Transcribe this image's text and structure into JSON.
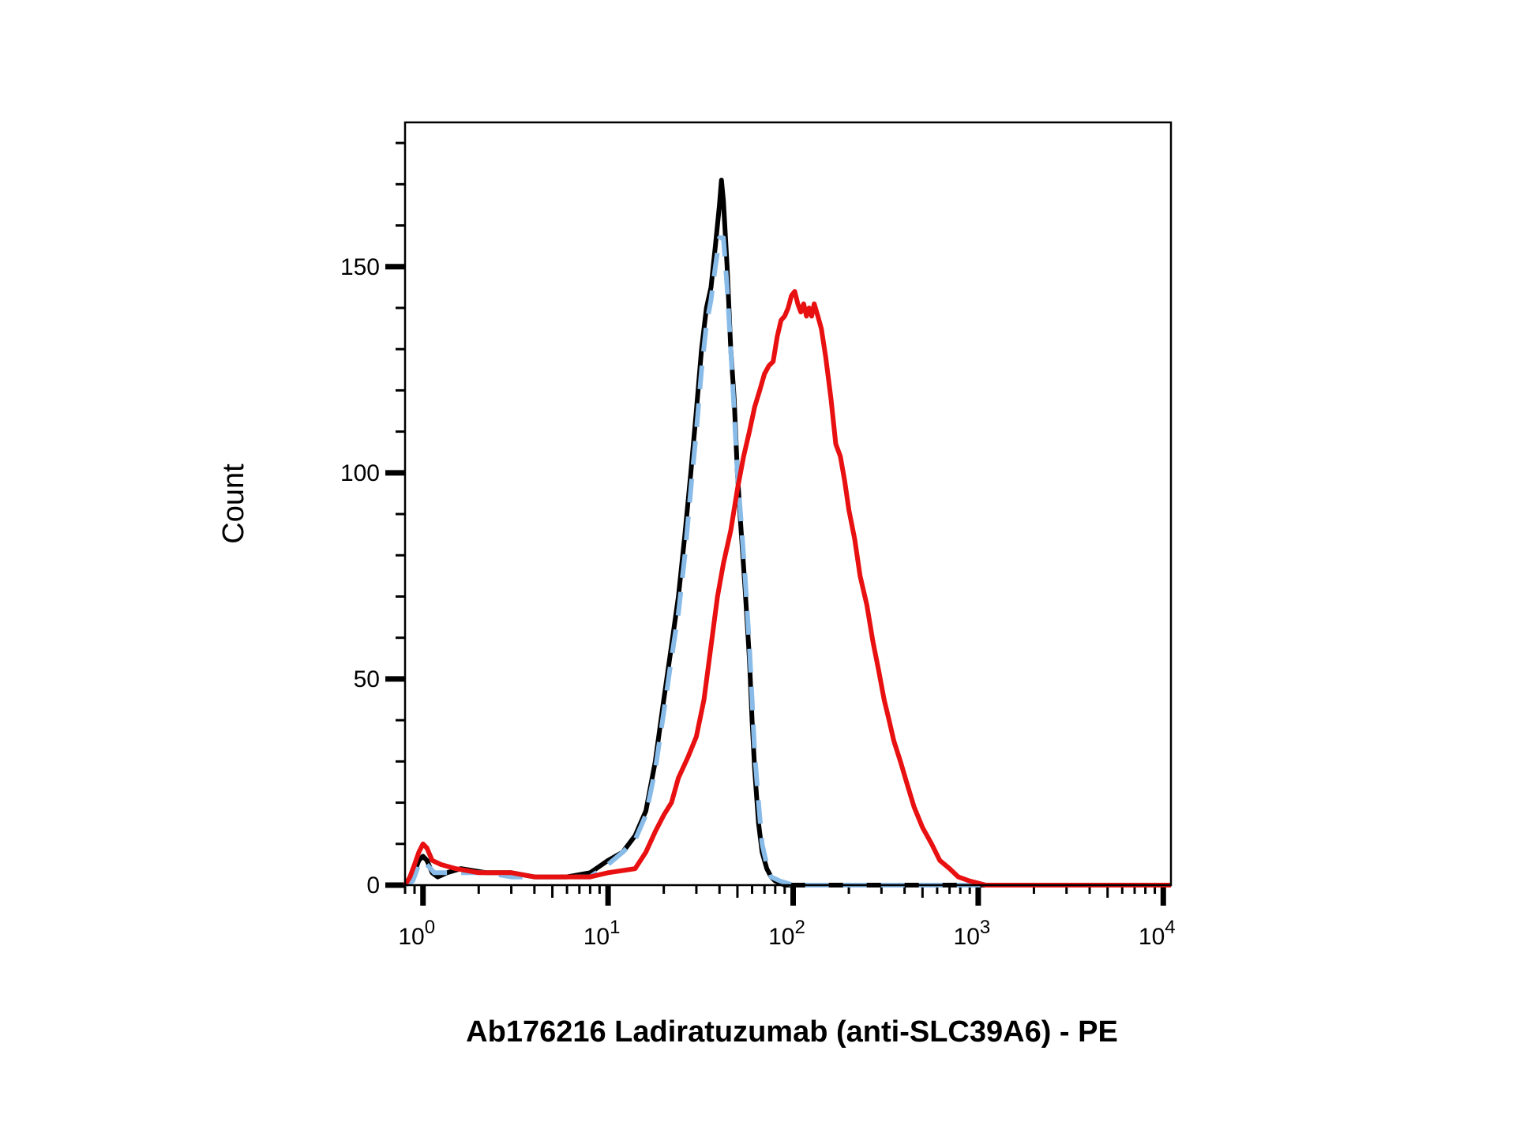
{
  "chart_data": {
    "type": "line",
    "title": "",
    "xlabel": "Ab176216 Ladiratuzumab (anti-SLC39A6) - PE",
    "ylabel": "Count",
    "xscale": "log",
    "xlim": [
      0.8,
      11000
    ],
    "ylim": [
      0,
      185
    ],
    "grid": false,
    "legend": "none",
    "x_ticks": [
      {
        "value": 1,
        "base": "10",
        "exp": "0"
      },
      {
        "value": 10,
        "base": "10",
        "exp": "1"
      },
      {
        "value": 100,
        "base": "10",
        "exp": "2"
      },
      {
        "value": 1000,
        "base": "10",
        "exp": "3"
      },
      {
        "value": 10000,
        "base": "10",
        "exp": "4"
      }
    ],
    "y_ticks": [
      {
        "value": 0,
        "label": "0"
      },
      {
        "value": 50,
        "label": "50"
      },
      {
        "value": 100,
        "label": "100"
      },
      {
        "value": 150,
        "label": "150"
      }
    ],
    "series": [
      {
        "color": "#000000",
        "style": "solid",
        "points": [
          [
            0.8,
            0
          ],
          [
            0.88,
            2
          ],
          [
            0.95,
            6
          ],
          [
            1.0,
            7
          ],
          [
            1.05,
            6
          ],
          [
            1.12,
            3
          ],
          [
            1.2,
            2
          ],
          [
            1.35,
            3
          ],
          [
            1.6,
            4
          ],
          [
            2.2,
            3
          ],
          [
            3,
            3
          ],
          [
            4,
            2
          ],
          [
            6,
            2
          ],
          [
            8,
            3
          ],
          [
            10,
            6
          ],
          [
            12,
            8
          ],
          [
            14,
            12
          ],
          [
            16,
            18
          ],
          [
            18,
            30
          ],
          [
            20,
            45
          ],
          [
            22,
            58
          ],
          [
            24,
            70
          ],
          [
            26,
            85
          ],
          [
            28,
            100
          ],
          [
            30,
            115
          ],
          [
            32,
            130
          ],
          [
            34,
            140
          ],
          [
            36,
            145
          ],
          [
            38,
            155
          ],
          [
            40,
            165
          ],
          [
            41,
            171
          ],
          [
            42,
            166
          ],
          [
            44,
            150
          ],
          [
            46,
            130
          ],
          [
            48,
            118
          ],
          [
            50,
            100
          ],
          [
            52,
            88
          ],
          [
            55,
            72
          ],
          [
            58,
            55
          ],
          [
            60,
            40
          ],
          [
            62,
            28
          ],
          [
            65,
            15
          ],
          [
            68,
            8
          ],
          [
            72,
            4
          ],
          [
            76,
            2
          ],
          [
            80,
            1
          ],
          [
            90,
            0
          ],
          [
            200,
            0
          ],
          [
            11000,
            0
          ]
        ]
      },
      {
        "color": "#88bbe8",
        "style": "dashed",
        "points": [
          [
            0.8,
            0
          ],
          [
            0.88,
            1
          ],
          [
            0.95,
            5
          ],
          [
            1.0,
            6
          ],
          [
            1.05,
            5
          ],
          [
            1.15,
            3
          ],
          [
            1.3,
            3
          ],
          [
            1.6,
            3
          ],
          [
            2.2,
            3
          ],
          [
            3,
            2
          ],
          [
            4,
            2
          ],
          [
            6,
            2
          ],
          [
            8,
            2
          ],
          [
            10,
            5
          ],
          [
            12,
            8
          ],
          [
            14,
            11
          ],
          [
            16,
            17
          ],
          [
            18,
            28
          ],
          [
            20,
            42
          ],
          [
            22,
            55
          ],
          [
            24,
            66
          ],
          [
            26,
            80
          ],
          [
            28,
            96
          ],
          [
            30,
            110
          ],
          [
            32,
            125
          ],
          [
            34,
            136
          ],
          [
            36,
            142
          ],
          [
            38,
            150
          ],
          [
            40,
            157
          ],
          [
            42,
            157
          ],
          [
            44,
            145
          ],
          [
            46,
            130
          ],
          [
            48,
            115
          ],
          [
            50,
            100
          ],
          [
            52,
            90
          ],
          [
            55,
            75
          ],
          [
            58,
            58
          ],
          [
            60,
            45
          ],
          [
            62,
            32
          ],
          [
            65,
            20
          ],
          [
            68,
            10
          ],
          [
            72,
            5
          ],
          [
            76,
            2
          ],
          [
            85,
            1
          ],
          [
            100,
            0
          ],
          [
            11000,
            0
          ]
        ]
      },
      {
        "color": "#e81010",
        "style": "solid",
        "points": [
          [
            0.8,
            0
          ],
          [
            0.85,
            2
          ],
          [
            0.9,
            5
          ],
          [
            0.95,
            8
          ],
          [
            1.0,
            10
          ],
          [
            1.05,
            9
          ],
          [
            1.12,
            6
          ],
          [
            1.25,
            5
          ],
          [
            1.5,
            4
          ],
          [
            2,
            3
          ],
          [
            3,
            3
          ],
          [
            4,
            2
          ],
          [
            6,
            2
          ],
          [
            8,
            2
          ],
          [
            10,
            3
          ],
          [
            14,
            4
          ],
          [
            16,
            8
          ],
          [
            18,
            13
          ],
          [
            20,
            17
          ],
          [
            22,
            20
          ],
          [
            24,
            26
          ],
          [
            27,
            31
          ],
          [
            30,
            36
          ],
          [
            33,
            45
          ],
          [
            36,
            58
          ],
          [
            39,
            70
          ],
          [
            42,
            78
          ],
          [
            46,
            86
          ],
          [
            50,
            96
          ],
          [
            54,
            104
          ],
          [
            58,
            110
          ],
          [
            62,
            116
          ],
          [
            66,
            120
          ],
          [
            70,
            124
          ],
          [
            74,
            126
          ],
          [
            78,
            127
          ],
          [
            82,
            133
          ],
          [
            86,
            137
          ],
          [
            90,
            138
          ],
          [
            94,
            140
          ],
          [
            98,
            143
          ],
          [
            102,
            144
          ],
          [
            106,
            141
          ],
          [
            110,
            139
          ],
          [
            114,
            141
          ],
          [
            118,
            138
          ],
          [
            122,
            140
          ],
          [
            126,
            138
          ],
          [
            130,
            141
          ],
          [
            136,
            138
          ],
          [
            142,
            135
          ],
          [
            150,
            128
          ],
          [
            160,
            118
          ],
          [
            170,
            107
          ],
          [
            180,
            104
          ],
          [
            190,
            98
          ],
          [
            200,
            91
          ],
          [
            215,
            84
          ],
          [
            230,
            75
          ],
          [
            250,
            68
          ],
          [
            270,
            59
          ],
          [
            290,
            52
          ],
          [
            310,
            45
          ],
          [
            330,
            40
          ],
          [
            350,
            35
          ],
          [
            380,
            30
          ],
          [
            410,
            25
          ],
          [
            450,
            19
          ],
          [
            500,
            14
          ],
          [
            560,
            10
          ],
          [
            620,
            6
          ],
          [
            700,
            4
          ],
          [
            780,
            2
          ],
          [
            900,
            1
          ],
          [
            1100,
            0
          ],
          [
            11000,
            0
          ]
        ]
      }
    ]
  }
}
